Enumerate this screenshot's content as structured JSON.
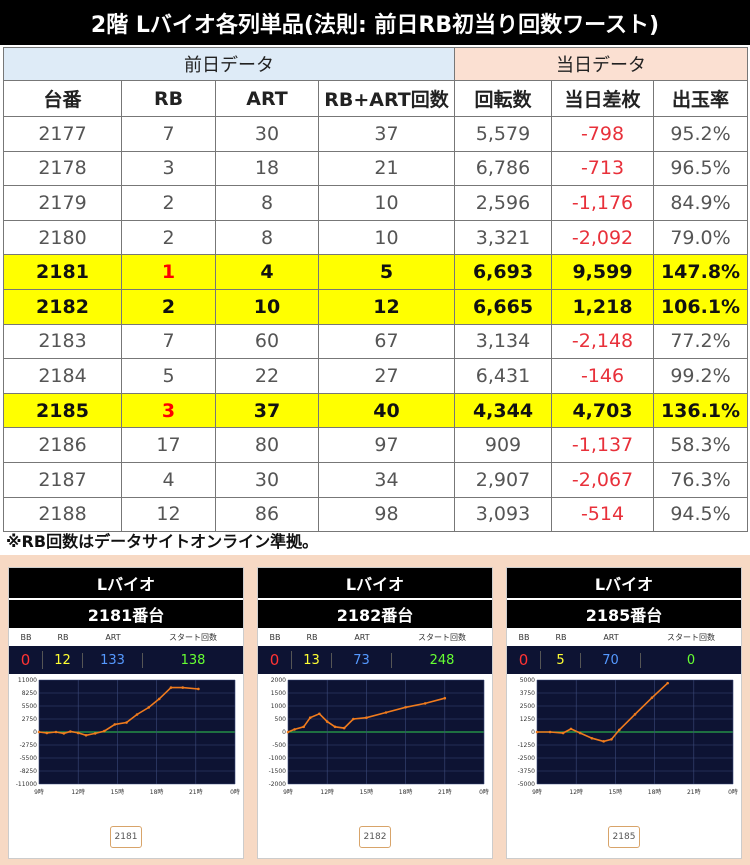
{
  "title": "2階 Lバイオ各列単品(法則: 前日RB初当り回数ワースト)",
  "groups": {
    "prev": "前日データ",
    "today": "当日データ"
  },
  "columns": [
    "台番",
    "RB",
    "ART",
    "RB+ART回数",
    "回転数",
    "当日差枚",
    "出玉率"
  ],
  "rows": [
    {
      "no": "2177",
      "rb": "7",
      "art": "30",
      "total": "37",
      "spins": "5,579",
      "diff": "-798",
      "rate": "95.2%",
      "hl": false
    },
    {
      "no": "2178",
      "rb": "3",
      "art": "18",
      "total": "21",
      "spins": "6,786",
      "diff": "-713",
      "rate": "96.5%",
      "hl": false
    },
    {
      "no": "2179",
      "rb": "2",
      "art": "8",
      "total": "10",
      "spins": "2,596",
      "diff": "-1,176",
      "rate": "84.9%",
      "hl": false
    },
    {
      "no": "2180",
      "rb": "2",
      "art": "8",
      "total": "10",
      "spins": "3,321",
      "diff": "-2,092",
      "rate": "79.0%",
      "hl": false
    },
    {
      "no": "2181",
      "rb": "1",
      "art": "4",
      "total": "5",
      "spins": "6,693",
      "diff": "9,599",
      "rate": "147.8%",
      "hl": true,
      "rbred": true
    },
    {
      "no": "2182",
      "rb": "2",
      "art": "10",
      "total": "12",
      "spins": "6,665",
      "diff": "1,218",
      "rate": "106.1%",
      "hl": true,
      "rbred": false
    },
    {
      "no": "2183",
      "rb": "7",
      "art": "60",
      "total": "67",
      "spins": "3,134",
      "diff": "-2,148",
      "rate": "77.2%",
      "hl": false
    },
    {
      "no": "2184",
      "rb": "5",
      "art": "22",
      "total": "27",
      "spins": "6,431",
      "diff": "-146",
      "rate": "99.2%",
      "hl": false
    },
    {
      "no": "2185",
      "rb": "3",
      "art": "37",
      "total": "40",
      "spins": "4,344",
      "diff": "4,703",
      "rate": "136.1%",
      "hl": true,
      "rbred": true
    },
    {
      "no": "2186",
      "rb": "17",
      "art": "80",
      "total": "97",
      "spins": "909",
      "diff": "-1,137",
      "rate": "58.3%",
      "hl": false
    },
    {
      "no": "2187",
      "rb": "4",
      "art": "30",
      "total": "34",
      "spins": "2,907",
      "diff": "-2,067",
      "rate": "76.3%",
      "hl": false
    },
    {
      "no": "2188",
      "rb": "12",
      "art": "86",
      "total": "98",
      "spins": "3,093",
      "diff": "-514",
      "rate": "94.5%",
      "hl": false
    }
  ],
  "note": "※RB回数はデータサイトオンライン準拠。",
  "colors": {
    "highlight": "#ffff00",
    "negative": "#e8303a",
    "line": "#f07b1d",
    "plot_bg": "#0d1333"
  },
  "panels": [
    {
      "machine": "Lバイオ",
      "unit": "2181番台",
      "stat_labels": [
        "BB",
        "RB",
        "ART",
        "スタート回数"
      ],
      "stats": {
        "bb": "0",
        "rb": "12",
        "art": "133",
        "start": "138"
      },
      "button": "2181",
      "chart_data": {
        "type": "line",
        "ylim": [
          -11000,
          11000
        ],
        "yticks": [
          "11000",
          "8250",
          "5500",
          "2750",
          "0",
          "-2750",
          "-5500",
          "-8250",
          "-11000"
        ],
        "yticks_num": [
          11000,
          8250,
          5500,
          2750,
          0,
          -2750,
          -5500,
          -8250,
          -11000
        ],
        "xticks": [
          "9時",
          "12時",
          "15時",
          "18時",
          "21時",
          "0時"
        ],
        "xlim": [
          9,
          24
        ],
        "x": [
          9,
          9.6,
          10.3,
          10.9,
          11.4,
          12.0,
          12.6,
          13.3,
          14.0,
          14.8,
          15.7,
          16.5,
          17.4,
          18.2,
          19.1,
          20.0,
          21.2
        ],
        "y": [
          0,
          -200,
          0,
          -300,
          100,
          -200,
          -700,
          -300,
          200,
          1600,
          2000,
          3700,
          5200,
          7000,
          9400,
          9400,
          9100
        ]
      }
    },
    {
      "machine": "Lバイオ",
      "unit": "2182番台",
      "stat_labels": [
        "BB",
        "RB",
        "ART",
        "スタート回数"
      ],
      "stats": {
        "bb": "0",
        "rb": "13",
        "art": "73",
        "start": "248"
      },
      "button": "2182",
      "chart_data": {
        "type": "line",
        "ylim": [
          -2000,
          2000
        ],
        "yticks": [
          "2000",
          "1500",
          "1000",
          "500",
          "0",
          "-500",
          "-1000",
          "-1500",
          "-2000"
        ],
        "yticks_num": [
          2000,
          1500,
          1000,
          500,
          0,
          -500,
          -1000,
          -1500,
          -2000
        ],
        "xticks": [
          "9時",
          "12時",
          "15時",
          "18時",
          "21時",
          "0時"
        ],
        "xlim": [
          9,
          24
        ],
        "x": [
          9,
          9.5,
          10.2,
          10.7,
          11.4,
          12.0,
          12.6,
          13.3,
          14.0,
          15.0,
          16.5,
          18.0,
          19.5,
          21.0
        ],
        "y": [
          0,
          100,
          200,
          550,
          700,
          400,
          200,
          150,
          500,
          550,
          750,
          950,
          1100,
          1300
        ]
      }
    },
    {
      "machine": "Lバイオ",
      "unit": "2185番台",
      "stat_labels": [
        "BB",
        "RB",
        "ART",
        "スタート回数"
      ],
      "stats": {
        "bb": "0",
        "rb": "5",
        "art": "70",
        "start": "0"
      },
      "button": "2185",
      "chart_data": {
        "type": "line",
        "ylim": [
          -5000,
          5000
        ],
        "yticks": [
          "5000",
          "3750",
          "2500",
          "1250",
          "0",
          "-1250",
          "-2500",
          "-3750",
          "-5000"
        ],
        "yticks_num": [
          5000,
          3750,
          2500,
          1250,
          0,
          -1250,
          -2500,
          -3750,
          -5000
        ],
        "xticks": [
          "9時",
          "12時",
          "15時",
          "18時",
          "21時",
          "0時"
        ],
        "xlim": [
          9,
          24
        ],
        "x": [
          9,
          10,
          11,
          11.6,
          12.3,
          13.2,
          14.1,
          14.7,
          15.3,
          16.5,
          17.8,
          19.0
        ],
        "y": [
          0,
          0,
          -100,
          300,
          -100,
          -600,
          -900,
          -700,
          200,
          1700,
          3300,
          4700
        ]
      }
    }
  ]
}
